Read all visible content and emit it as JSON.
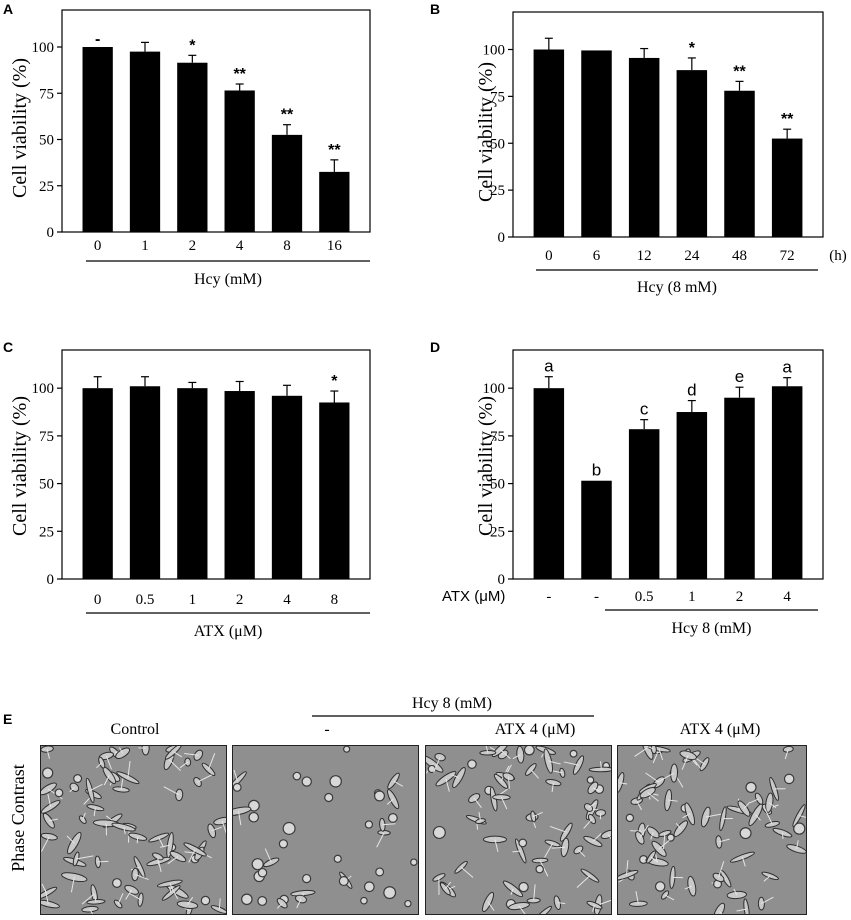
{
  "chart_data": [
    {
      "type": "bar",
      "panel": "A",
      "ylabel": "Cell viability (%)",
      "xlabel": "Hcy (mM)",
      "categories": [
        "0",
        "1",
        "2",
        "4",
        "8",
        "16"
      ],
      "values": [
        100,
        97.5,
        91.5,
        76.5,
        52.5,
        32.5
      ],
      "errors": [
        0,
        5,
        4,
        3.5,
        5.5,
        6.5
      ],
      "annotations": [
        "-",
        "",
        "*",
        "**",
        "**",
        "**"
      ],
      "yticks": [
        "0",
        "25",
        "50",
        "75",
        "100"
      ],
      "ylim": [
        0,
        120
      ],
      "unit": ""
    },
    {
      "type": "bar",
      "panel": "B",
      "ylabel": "Cell viability (%)",
      "xlabel": "Hcy (8 mM)",
      "categories": [
        "0",
        "6",
        "12",
        "24",
        "48",
        "72"
      ],
      "values": [
        100,
        99.5,
        95.5,
        89,
        78,
        52.5
      ],
      "errors": [
        6,
        0,
        5,
        6.5,
        5,
        5
      ],
      "annotations": [
        "",
        "",
        "",
        "*",
        "**",
        "**"
      ],
      "yticks": [
        "0",
        "25",
        "50",
        "75",
        "100"
      ],
      "ylim": [
        0,
        120
      ],
      "unit": "(h)"
    },
    {
      "type": "bar",
      "panel": "C",
      "ylabel": "Cell viability (%)",
      "xlabel": "ATX (μM)",
      "categories": [
        "0",
        "0.5",
        "1",
        "2",
        "4",
        "8"
      ],
      "values": [
        100,
        101,
        100,
        98.5,
        96,
        92.5
      ],
      "errors": [
        6,
        5,
        3,
        5,
        5.5,
        6
      ],
      "annotations": [
        "",
        "",
        "",
        "",
        "",
        "*"
      ],
      "yticks": [
        "0",
        "25",
        "50",
        "75",
        "100"
      ],
      "ylim": [
        0,
        120
      ],
      "unit": ""
    },
    {
      "type": "bar",
      "panel": "D",
      "ylabel": "Cell viability (%)",
      "xlabel": "Hcy 8 (mM)",
      "rowlabel": "ATX (μM)",
      "categories": [
        "-",
        "-",
        "0.5",
        "1",
        "2",
        "4"
      ],
      "values": [
        100,
        51.5,
        78.5,
        87.5,
        95,
        101
      ],
      "errors": [
        6,
        0,
        5,
        6,
        5.5,
        4.5
      ],
      "annotations": [
        "a",
        "b",
        "c",
        "d",
        "e",
        "a"
      ],
      "yticks": [
        "0",
        "25",
        "50",
        "75",
        "100"
      ],
      "ylim": [
        0,
        120
      ],
      "unit": ""
    }
  ],
  "panel_e": {
    "label": "E",
    "group_label": "Hcy 8 (mM)",
    "row_label": "Phase Contrast",
    "captions": [
      "Control",
      "-",
      "ATX 4 (μM)",
      "ATX 4 (μM)"
    ]
  }
}
